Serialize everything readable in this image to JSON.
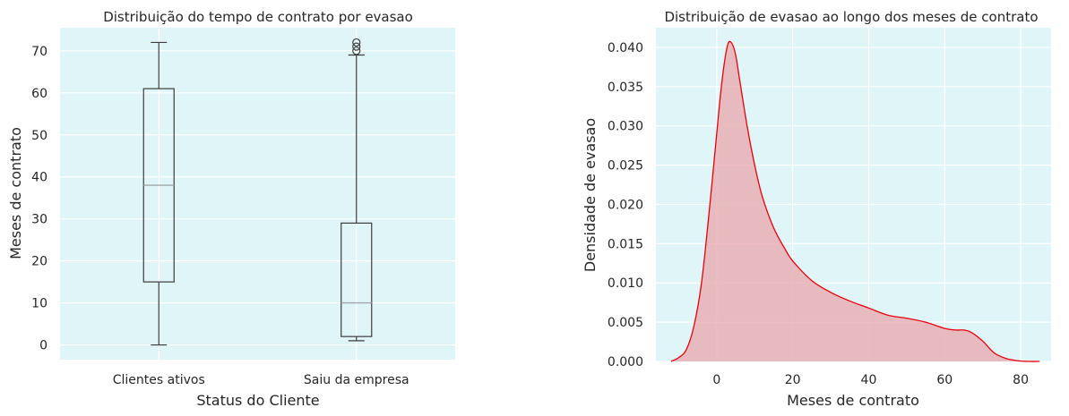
{
  "chart_data": [
    {
      "type": "box",
      "title": "Distribuição do tempo de contrato por evasao",
      "xlabel": "Status do Cliente",
      "ylabel": "Meses de contrato",
      "ylim": [
        -3.5,
        75.5
      ],
      "yticks": [
        0,
        10,
        20,
        30,
        40,
        50,
        60,
        70
      ],
      "grid": true,
      "background": "#dff5f7",
      "categories": [
        "Clientes ativos",
        "Saiu da empresa"
      ],
      "boxes": [
        {
          "name": "Clientes ativos",
          "min": 0,
          "q1": 15,
          "median": 38,
          "q3": 61,
          "max": 72,
          "fliers": []
        },
        {
          "name": "Saiu da empresa",
          "min": 1,
          "q1": 2,
          "median": 10,
          "q3": 29,
          "max": 69,
          "fliers": [
            70,
            71,
            72
          ]
        }
      ]
    },
    {
      "type": "area",
      "title": "Distribuição de evasao ao longo dos meses de contrato",
      "xlabel": "Meses de contrato",
      "ylabel": "Densidade de evasao",
      "xlim": [
        -16,
        88
      ],
      "ylim": [
        0,
        0.0425
      ],
      "xticks": [
        0,
        20,
        40,
        60,
        80
      ],
      "yticks": [
        "0.000",
        "0.005",
        "0.010",
        "0.015",
        "0.020",
        "0.025",
        "0.030",
        "0.035",
        "0.040"
      ],
      "grid": true,
      "background": "#dff5f7",
      "line_color": "#e8000b",
      "fill_color": "#e8a6ab",
      "series": [
        {
          "x": [
            -12,
            -10,
            -8,
            -6,
            -4,
            -2,
            0,
            1,
            2,
            3,
            4,
            5,
            6,
            8,
            10,
            12,
            15,
            18,
            20,
            25,
            30,
            35,
            40,
            45,
            50,
            55,
            60,
            63,
            65,
            67,
            70,
            73,
            76,
            79,
            82,
            85
          ],
          "y": [
            0.0,
            0.0005,
            0.0015,
            0.0045,
            0.01,
            0.019,
            0.029,
            0.034,
            0.038,
            0.0405,
            0.0405,
            0.039,
            0.036,
            0.03,
            0.025,
            0.021,
            0.017,
            0.0143,
            0.0128,
            0.0103,
            0.0088,
            0.0077,
            0.0068,
            0.0059,
            0.0055,
            0.005,
            0.0042,
            0.004,
            0.004,
            0.0037,
            0.0026,
            0.0011,
            0.0004,
            0.0001,
            0.0,
            0.0
          ]
        }
      ]
    }
  ]
}
